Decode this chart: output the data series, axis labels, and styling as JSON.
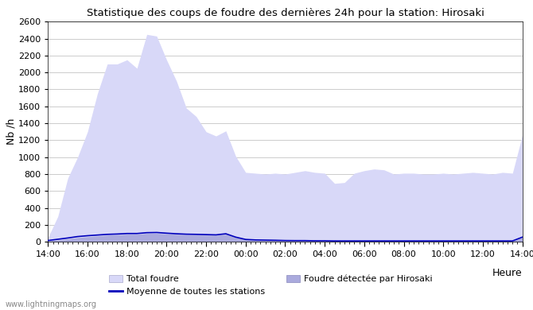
{
  "title": "Statistique des coups de foudre des dernières 24h pour la station: Hirosaki",
  "ylabel": "Nb /h",
  "xlabel": "Heure",
  "watermark": "www.lightningmaps.org",
  "ylim": [
    0,
    2600
  ],
  "yticks": [
    0,
    200,
    400,
    600,
    800,
    1000,
    1200,
    1400,
    1600,
    1800,
    2000,
    2200,
    2400,
    2600
  ],
  "xtick_labels": [
    "14:00",
    "16:00",
    "18:00",
    "20:00",
    "22:00",
    "00:00",
    "02:00",
    "04:00",
    "06:00",
    "08:00",
    "10:00",
    "12:00",
    "14:00"
  ],
  "color_total": "#d8d8f8",
  "color_detected": "#aaaadd",
  "color_mean_line": "#0000bb",
  "background_color": "#ffffff",
  "total_foudre": [
    50,
    300,
    750,
    1000,
    1300,
    1750,
    2100,
    2100,
    2150,
    2050,
    2450,
    2430,
    2150,
    1900,
    1580,
    1480,
    1300,
    1250,
    1310,
    1010,
    820,
    810,
    800,
    810,
    800,
    820,
    840,
    820,
    810,
    690,
    700,
    810,
    840,
    860,
    850,
    800,
    810,
    810,
    800,
    800,
    810,
    800,
    810,
    820,
    810,
    800,
    820,
    810,
    1260
  ],
  "detected": [
    10,
    20,
    35,
    50,
    60,
    70,
    80,
    85,
    90,
    90,
    100,
    100,
    95,
    90,
    85,
    82,
    80,
    78,
    90,
    50,
    25,
    20,
    18,
    16,
    14,
    12,
    12,
    10,
    10,
    8,
    8,
    8,
    8,
    8,
    8,
    8,
    8,
    8,
    8,
    8,
    8,
    8,
    8,
    8,
    8,
    8,
    8,
    8,
    50
  ],
  "mean_line": [
    15,
    30,
    45,
    62,
    72,
    80,
    88,
    92,
    98,
    98,
    108,
    110,
    102,
    95,
    90,
    88,
    85,
    82,
    95,
    55,
    28,
    22,
    20,
    18,
    15,
    14,
    14,
    12,
    12,
    10,
    10,
    10,
    10,
    10,
    10,
    10,
    10,
    10,
    10,
    10,
    10,
    10,
    10,
    10,
    10,
    10,
    10,
    10,
    55
  ],
  "n_points": 49
}
